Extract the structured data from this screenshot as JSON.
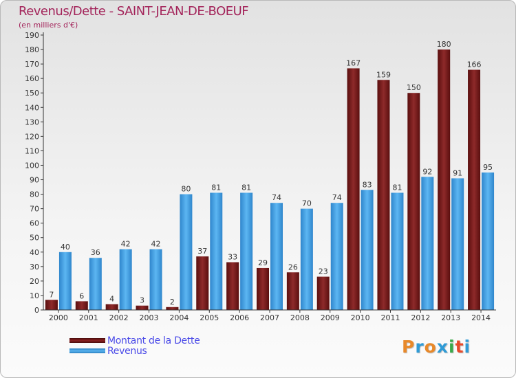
{
  "chart_data": {
    "type": "bar",
    "title": "Revenus/Dette - SAINT-JEAN-DE-BOEUF",
    "subtitle": "(en milliers d'€)",
    "categories": [
      "2000",
      "2001",
      "2002",
      "2003",
      "2004",
      "2005",
      "2006",
      "2007",
      "2008",
      "2009",
      "2010",
      "2011",
      "2012",
      "2013",
      "2014"
    ],
    "series": [
      {
        "name": "Montant de la Dette",
        "color": "#7b1a1a",
        "values": [
          7,
          6,
          4,
          3,
          2,
          37,
          33,
          29,
          26,
          23,
          167,
          159,
          150,
          180,
          166
        ]
      },
      {
        "name": "Revenus",
        "color": "#4aa6e6",
        "values": [
          40,
          36,
          42,
          42,
          80,
          81,
          81,
          74,
          70,
          74,
          83,
          81,
          92,
          91,
          95
        ]
      }
    ],
    "ylim": [
      0,
      190
    ],
    "ytick_step": 10,
    "grid": false,
    "legend": "bottom-left"
  },
  "logo": {
    "text": "Proxiti",
    "letters": [
      "P",
      "r",
      "o",
      "x",
      "i",
      "t",
      "i"
    ],
    "colors": [
      "#e8892a",
      "#2f9bd6",
      "#e8892a",
      "#2f9bd6",
      "#3aa84a",
      "#e84a2a",
      "#2f9bd6"
    ]
  }
}
